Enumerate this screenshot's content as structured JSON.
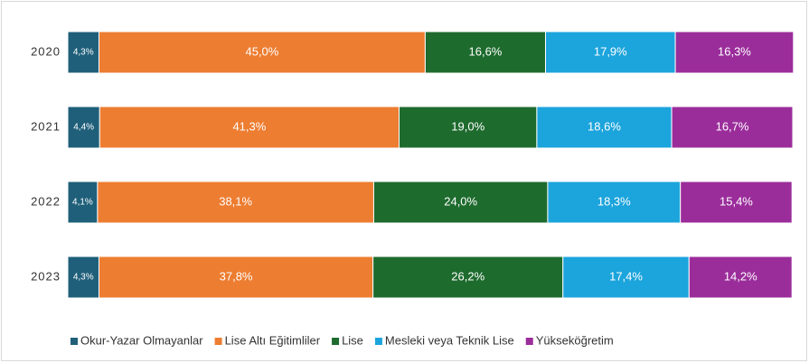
{
  "chart_data": {
    "type": "stacked_barh",
    "categories": [
      "2020",
      "2021",
      "2022",
      "2023"
    ],
    "xlim": [
      0,
      100
    ],
    "legend": "bottom",
    "series": [
      {
        "name": "Okur-Yazar Olmayanlar",
        "color": "#1f5f7a",
        "values": [
          4.3,
          4.4,
          4.1,
          4.3
        ],
        "value_labels": [
          "4,3%",
          "4,4%",
          "4,1%",
          "4,3%"
        ]
      },
      {
        "name": "Lise Altı Eğitimliler",
        "color": "#ed7d31",
        "values": [
          45.0,
          41.3,
          38.1,
          37.8
        ],
        "value_labels": [
          "45,0%",
          "41,3%",
          "38,1%",
          "37,8%"
        ]
      },
      {
        "name": "Lise",
        "color": "#1e6b2e",
        "values": [
          16.6,
          19.0,
          24.0,
          26.2
        ],
        "value_labels": [
          "16,6%",
          "19,0%",
          "24,0%",
          "26,2%"
        ]
      },
      {
        "name": "Mesleki veya Teknik Lise",
        "color": "#1ca4dc",
        "values": [
          17.9,
          18.6,
          18.3,
          17.4
        ],
        "value_labels": [
          "17,9%",
          "18,6%",
          "18,3%",
          "17,4%"
        ]
      },
      {
        "name": "Yükseköğretim",
        "color": "#9b2d9b",
        "values": [
          16.3,
          16.7,
          15.4,
          14.2
        ],
        "value_labels": [
          "16,3%",
          "16,7%",
          "15,4%",
          "14,2%"
        ]
      }
    ]
  }
}
